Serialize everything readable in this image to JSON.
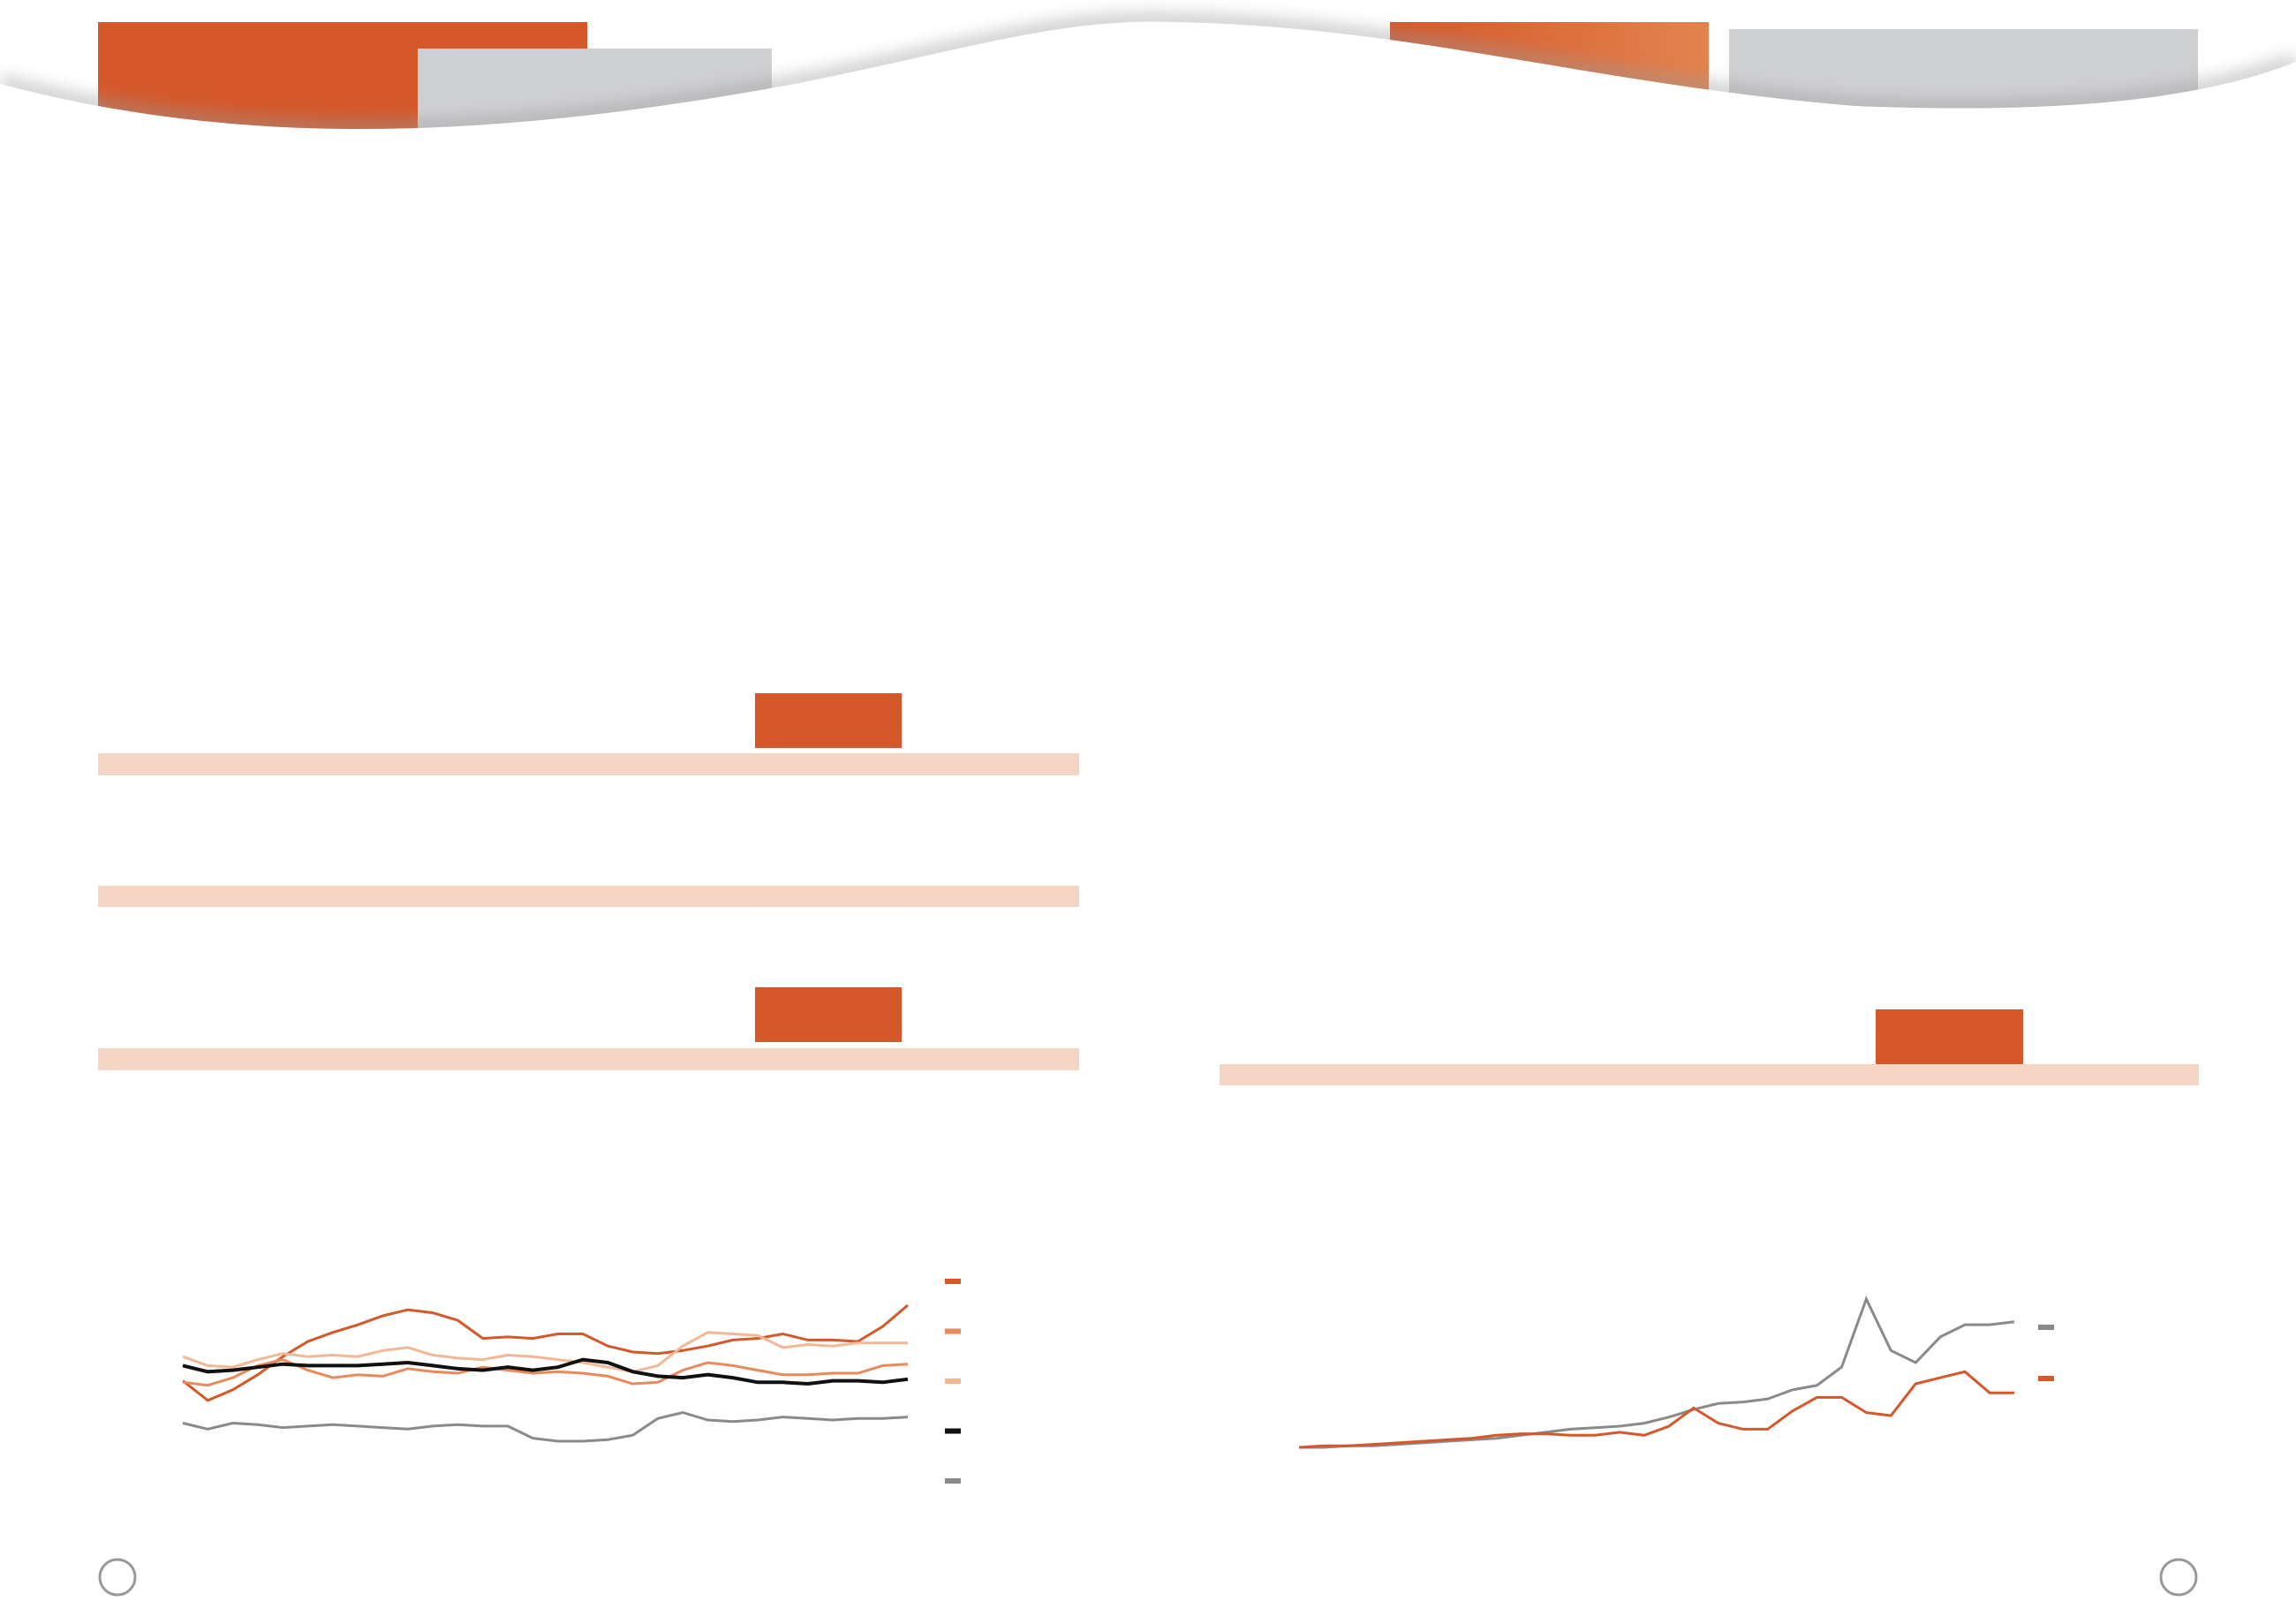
{
  "charts": [
    {
      "chart_data": {
        "type": "line",
        "series": [
          {
            "color": "#d4582a",
            "values": [
              64,
              51,
              58,
              68,
              80,
              90,
              96,
              101,
              107,
              111,
              109,
              104,
              92,
              93,
              92,
              95,
              95,
              87,
              83,
              82,
              84,
              87,
              91,
              92,
              95,
              91,
              91,
              90,
              100,
              114
            ]
          },
          {
            "color": "#e98a5a",
            "values": [
              63,
              61,
              66,
              74,
              78,
              71,
              66,
              68,
              67,
              72,
              70,
              69,
              73,
              71,
              69,
              70,
              69,
              67,
              62,
              63,
              71,
              76,
              74,
              71,
              68,
              68,
              69,
              69,
              74,
              75
            ]
          },
          {
            "color": "#f2b896",
            "values": [
              80,
              74,
              73,
              78,
              82,
              80,
              81,
              80,
              84,
              86,
              81,
              79,
              78,
              81,
              80,
              78,
              76,
              73,
              70,
              74,
              87,
              96,
              95,
              94,
              86,
              88,
              87,
              89,
              89,
              89
            ]
          },
          {
            "color": "#111111",
            "values": [
              74,
              70,
              71,
              73,
              75,
              74,
              74,
              74,
              75,
              76,
              74,
              72,
              71,
              73,
              71,
              73,
              78,
              76,
              70,
              67,
              66,
              68,
              66,
              63,
              63,
              62,
              64,
              64,
              63,
              65
            ]
          },
          {
            "color": "#8a8a8a",
            "values": [
              36,
              32,
              36,
              35,
              33,
              34,
              35,
              34,
              33,
              32,
              34,
              35,
              34,
              34,
              26,
              24,
              24,
              25,
              28,
              39,
              43,
              38,
              37,
              38,
              40,
              39,
              38,
              39,
              39,
              40
            ]
          }
        ]
      }
    },
    {
      "chart_data": {
        "type": "line",
        "series": [
          {
            "color": "#8a8a8a",
            "values": [
              22,
              22,
              23,
              23,
              24,
              25,
              26,
              27,
              28,
              30,
              32,
              34,
              35,
              36,
              38,
              42,
              47,
              51,
              52,
              54,
              60,
              63,
              75,
              120,
              86,
              78,
              95,
              103,
              103,
              105
            ]
          },
          {
            "color": "#d4582a",
            "values": [
              22,
              23,
              23,
              24,
              25,
              26,
              27,
              28,
              30,
              31,
              31,
              30,
              30,
              32,
              30,
              36,
              48,
              38,
              34,
              34,
              46,
              55,
              55,
              45,
              43,
              64,
              68,
              72,
              58,
              58
            ]
          }
        ]
      }
    }
  ]
}
